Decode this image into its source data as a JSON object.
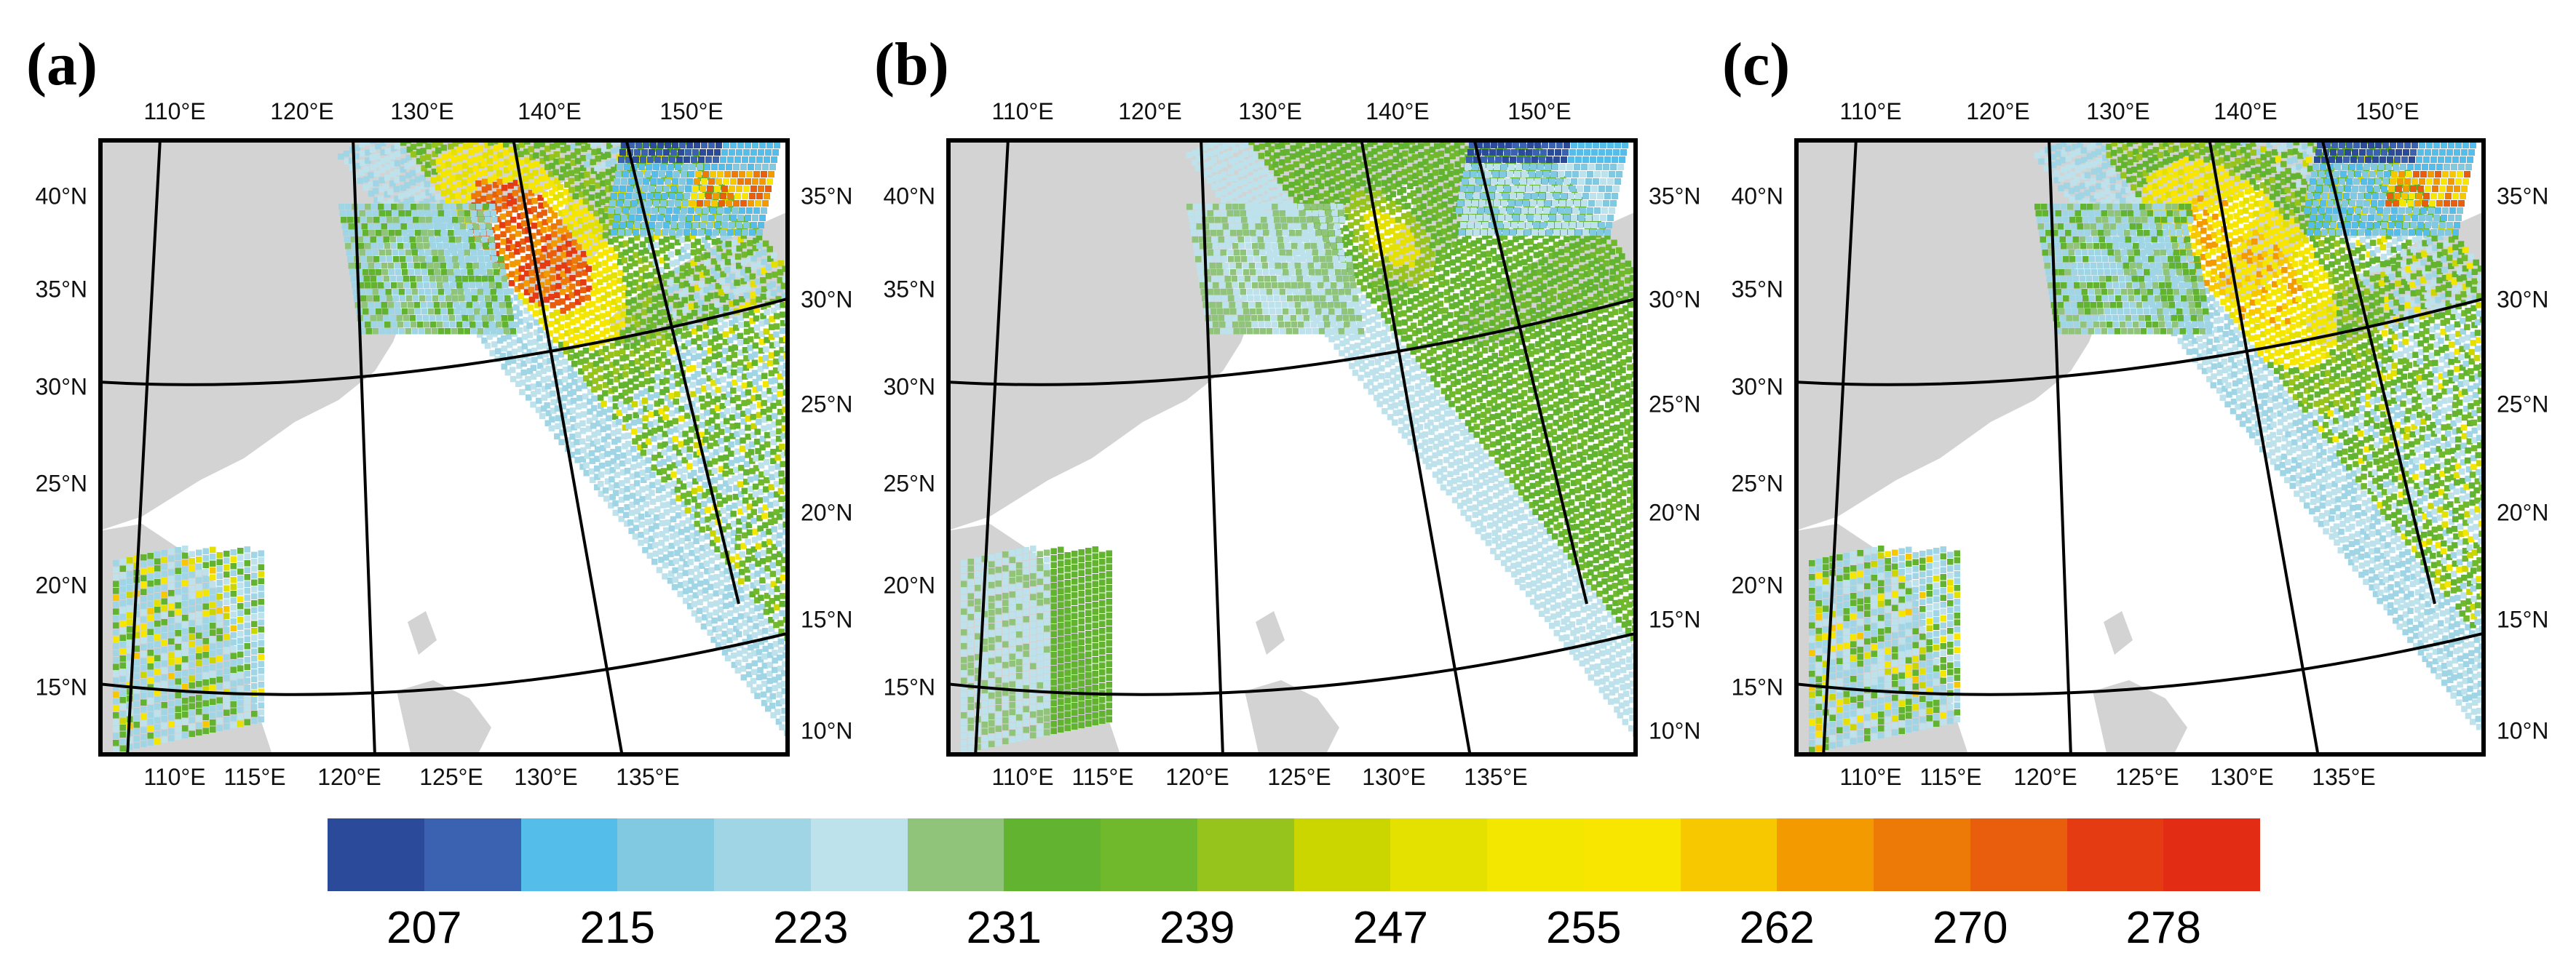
{
  "panels": [
    {
      "label": "(a)",
      "variant": "a"
    },
    {
      "label": "(b)",
      "variant": "b"
    },
    {
      "label": "(c)",
      "variant": "c"
    }
  ],
  "axes": {
    "top_lon": [
      "110°E",
      "120°E",
      "130°E",
      "140°E",
      "150°E"
    ],
    "bottom_lon": [
      "110°E",
      "115°E",
      "120°E",
      "125°E",
      "130°E",
      "135°E"
    ],
    "left_lat": [
      "40°N",
      "35°N",
      "30°N",
      "25°N",
      "20°N",
      "15°N"
    ],
    "right_lat": [
      "35°N",
      "30°N",
      "25°N",
      "20°N",
      "15°N",
      "10°N"
    ]
  },
  "colorbar": {
    "colors": [
      "#2b4a9a",
      "#3a62b0",
      "#55bde9",
      "#80c9e0",
      "#9fd5e5",
      "#bde2ec",
      "#8fc47a",
      "#62b32f",
      "#70b82c",
      "#97c31d",
      "#cbd600",
      "#e4e000",
      "#f3e700",
      "#f9e600",
      "#f7c800",
      "#f29a00",
      "#ed7a07",
      "#e85e0c",
      "#e43b12",
      "#e22d14"
    ],
    "labels": [
      "207",
      "215",
      "223",
      "231",
      "239",
      "247",
      "255",
      "262",
      "270",
      "278"
    ]
  }
}
